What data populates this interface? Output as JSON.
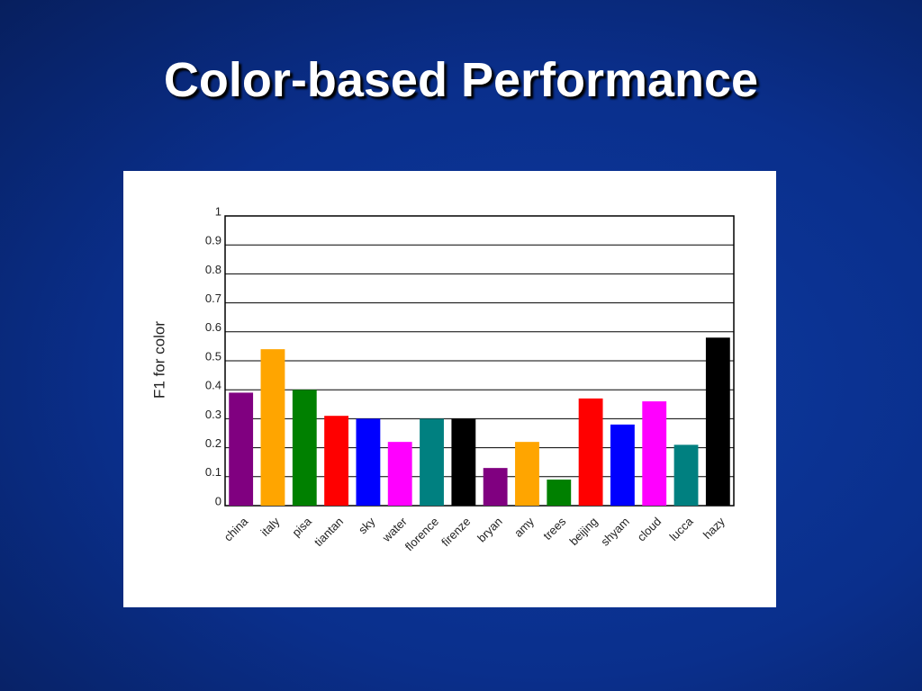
{
  "slide_title": "Color-based Performance",
  "chart_data": {
    "type": "bar",
    "y_label": "F1 for color",
    "categories": [
      "china",
      "italy",
      "pisa",
      "tiantan",
      "sky",
      "water",
      "florence",
      "firenze",
      "bryan",
      "amy",
      "trees",
      "beijing",
      "shyam",
      "cloud",
      "lucca",
      "hazy"
    ],
    "values": [
      0.39,
      0.54,
      0.4,
      0.31,
      0.3,
      0.22,
      0.3,
      0.3,
      0.13,
      0.22,
      0.09,
      0.37,
      0.28,
      0.36,
      0.21,
      0.58
    ],
    "colors": [
      "#800080",
      "#ffa500",
      "#008000",
      "#ff0000",
      "#0000ff",
      "#ff00ff",
      "#008080",
      "#000000",
      "#800080",
      "#ffa500",
      "#008000",
      "#ff0000",
      "#0000ff",
      "#ff00ff",
      "#008080",
      "#000000"
    ],
    "ylim": [
      0,
      1
    ],
    "yticks": [
      0,
      0.1,
      0.2,
      0.3,
      0.4,
      0.5,
      0.6,
      0.7,
      0.8,
      0.9,
      1
    ],
    "grid": true
  }
}
